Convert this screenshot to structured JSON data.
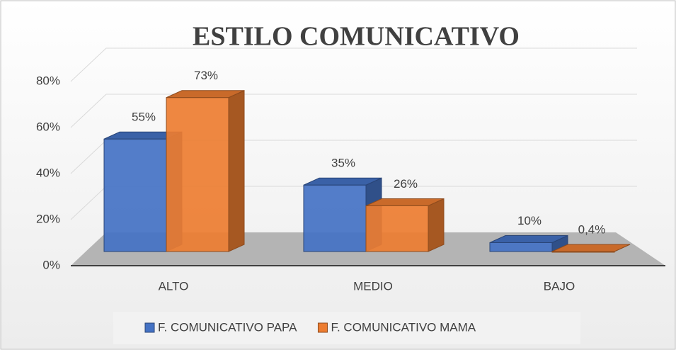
{
  "chart_data": {
    "type": "bar3d",
    "title": "ESTILO COMUNICATIVO",
    "categories": [
      "ALTO",
      "MEDIO",
      "BAJO"
    ],
    "series": [
      {
        "name": "F. COMUNICATIVO PAPA",
        "color": "#4472c4",
        "values": [
          55,
          35,
          10
        ],
        "value_labels": [
          "55%",
          "35%",
          "10%"
        ]
      },
      {
        "name": "F. COMUNICATIVO MAMA",
        "color": "#ed7d31",
        "values": [
          73,
          26,
          0.4
        ],
        "value_labels": [
          "73%",
          "26%",
          "0,4%"
        ]
      }
    ],
    "ylim": [
      0,
      80
    ],
    "yticks": [
      {
        "value": 0,
        "label": "0%"
      },
      {
        "value": 20,
        "label": "20%"
      },
      {
        "value": 40,
        "label": "40%"
      },
      {
        "value": 60,
        "label": "60%"
      },
      {
        "value": 80,
        "label": "80%"
      }
    ],
    "grid": true,
    "legend": "bottom"
  }
}
